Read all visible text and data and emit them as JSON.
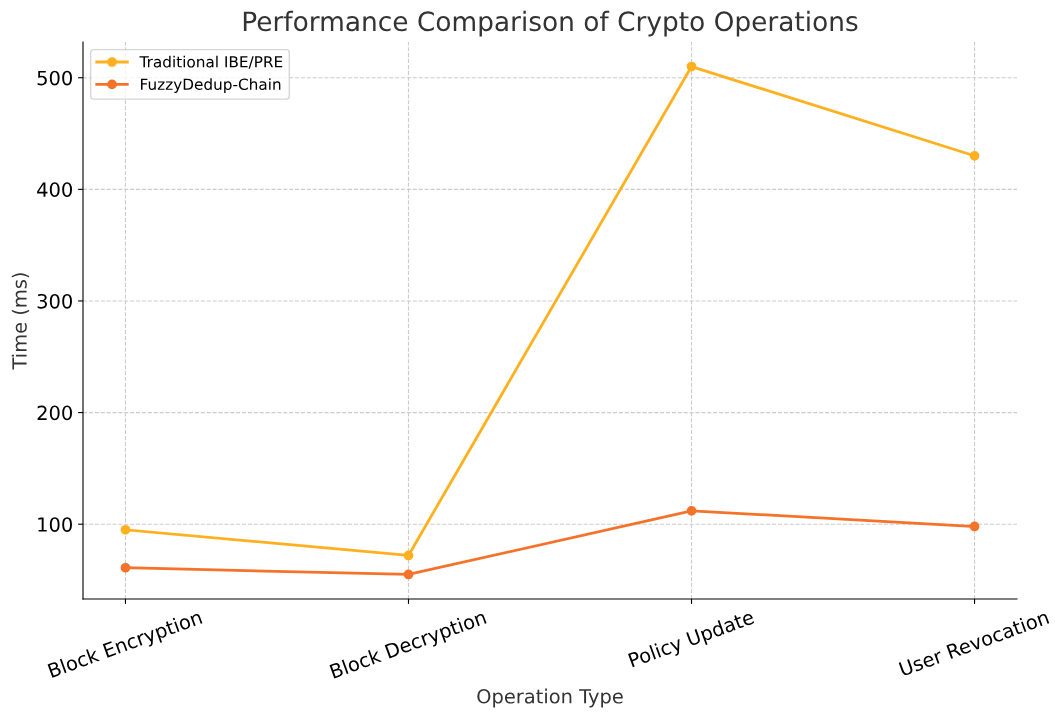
{
  "chart_data": {
    "type": "line",
    "title": "Performance Comparison of Crypto Operations",
    "xlabel": "Operation Type",
    "ylabel": "Time (ms)",
    "categories": [
      "Block Encryption",
      "Block Decryption",
      "Policy Update",
      "User Revocation"
    ],
    "series": [
      {
        "name": "Traditional IBE/PRE",
        "color": "#ffb01f",
        "values": [
          95,
          72,
          510,
          430
        ]
      },
      {
        "name": "FuzzyDedup-Chain",
        "color": "#f5722a",
        "values": [
          61,
          55,
          112,
          98
        ]
      }
    ],
    "ylim": [
      33,
      532
    ],
    "yticks": [
      100,
      200,
      300,
      400,
      500
    ],
    "grid": true,
    "legend": "top left",
    "marker": "circle",
    "line_style": "solid"
  }
}
